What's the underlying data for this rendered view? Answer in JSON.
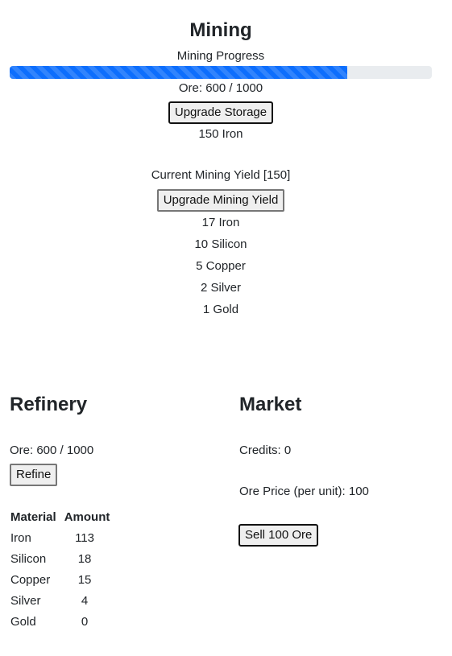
{
  "mining": {
    "title": "Mining",
    "progress_label": "Mining Progress",
    "progress_fraction": 0.8,
    "ore_status": "Ore: 600 / 1000",
    "upgrade_storage_label": "Upgrade Storage",
    "storage_cost": "150 Iron",
    "yield_label": "Current Mining Yield [150]",
    "upgrade_yield_label": "Upgrade Mining Yield",
    "yield_costs": [
      "17 Iron",
      "10 Silicon",
      "5 Copper",
      "2 Silver",
      "1 Gold"
    ]
  },
  "refinery": {
    "title": "Refinery",
    "ore_status": "Ore: 600 / 1000",
    "refine_label": "Refine",
    "table": {
      "headers": [
        "Material",
        "Amount"
      ],
      "rows": [
        [
          "Iron",
          "113"
        ],
        [
          "Silicon",
          "18"
        ],
        [
          "Copper",
          "15"
        ],
        [
          "Silver",
          "4"
        ],
        [
          "Gold",
          "0"
        ]
      ]
    }
  },
  "market": {
    "title": "Market",
    "credits": "Credits: 0",
    "ore_price": "Ore Price (per unit): 100",
    "sell_label": "Sell 100 Ore"
  },
  "colors": {
    "progress": "#0d6efd",
    "progress_track": "#e9ecef"
  }
}
